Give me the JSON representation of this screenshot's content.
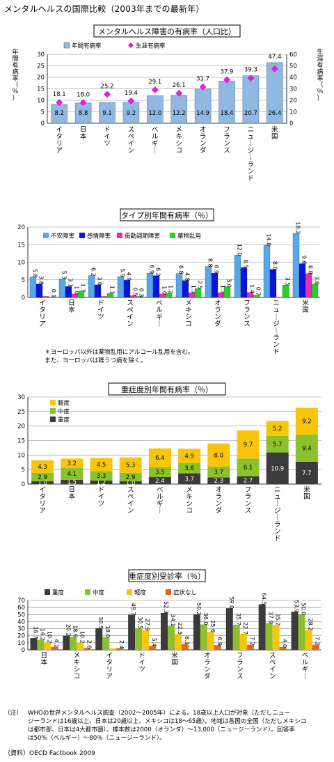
{
  "page_title": "メンタルヘルスの国際比較（2003年までの最新年）",
  "colors": {
    "annual_bar": "#8fb8e2",
    "lifetime_marker": "#e020e0",
    "anxiety": "#55a7ee",
    "mood": "#0a15d9",
    "impulse": "#ea2cb0",
    "substance": "#22d422",
    "mild": "#f9c50b",
    "moderate": "#8bc12c",
    "severe": "#3b3b3b",
    "treat_none": "#e4661e"
  },
  "chart_data": [
    {
      "type": "bar",
      "title": "メンタルヘルス障害の有病率（人口比）",
      "categories": [
        "イタリア",
        "日本",
        "ドイツ",
        "スペイン",
        "ベルギー",
        "メキシコ",
        "オランダ",
        "フランス",
        "ニュージーランド",
        "米国"
      ],
      "series": [
        {
          "name": "年間有病率",
          "axis": "left",
          "values": [
            8.2,
            8.8,
            9.1,
            9.2,
            12.0,
            12.2,
            14.9,
            18.4,
            20.7,
            26.4
          ]
        },
        {
          "name": "生涯有病率",
          "axis": "right",
          "chart": "scatter",
          "values": [
            18.1,
            18.0,
            25.2,
            19.4,
            29.1,
            26.1,
            31.7,
            37.9,
            39.3,
            47.4
          ]
        }
      ],
      "data_labels_top": [
        "18.1",
        "18.0",
        "25.2",
        "19.4",
        "29.1",
        "26.1",
        "31.7",
        "37.9",
        "39.3",
        "47.4"
      ],
      "data_labels_bar": [
        "8.2",
        "8.8",
        "9.1",
        "9.2",
        "12.0",
        "12.2",
        "14.9",
        "18.4",
        "20.7",
        "26.4"
      ],
      "ylabel": "年間有病率（％）",
      "ylabel_right": "生涯有病率（％）",
      "ylim": [
        0,
        30
      ],
      "ylim_right": [
        0,
        60
      ],
      "yticks": [
        "0",
        "5",
        "10",
        "15",
        "20",
        "25",
        "30"
      ],
      "yticks_right": [
        "0",
        "10",
        "20",
        "30",
        "40",
        "50",
        "60"
      ],
      "legend": "top"
    },
    {
      "type": "bar",
      "title": "タイプ別年間有病率（％）",
      "categories": [
        "イタリア",
        "日本",
        "ドイツ",
        "スペイン",
        "ベルギー",
        "メキシコ",
        "オランダ",
        "フランス",
        "ニュージーランド",
        "米国"
      ],
      "series": [
        {
          "name": "不安障害",
          "values": [
            5.8,
            5.3,
            6.2,
            5.9,
            6.9,
            6.8,
            8.8,
            12.0,
            14.8,
            18.2
          ]
        },
        {
          "name": "感情障害",
          "values": [
            3.8,
            3.1,
            3.6,
            4.9,
            6.2,
            4.8,
            6.9,
            8.5,
            8.0,
            9.6
          ]
        },
        {
          "name": "衝動調節障害",
          "values": [
            0.3,
            1.0,
            0.3,
            0.5,
            1.0,
            1.3,
            1.3,
            1.4,
            0.0,
            6.8
          ]
        },
        {
          "name": "薬物乱用",
          "values": [
            0.1,
            1.7,
            1.1,
            0.3,
            1.2,
            2.5,
            3.0,
            0.7,
            3.5,
            3.8
          ]
        }
      ],
      "data_labels": [
        [
          "5.8",
          "3.8",
          "",
          "0.1"
        ],
        [
          "5.3",
          "3.1",
          "1.0",
          "1.7"
        ],
        [
          "6.2",
          "3.6",
          "",
          "1.1"
        ],
        [
          "5.9",
          "4.9",
          "0.5",
          "0.3"
        ],
        [
          "6.9",
          "6.2",
          "1.0",
          "1.2"
        ],
        [
          "6.8",
          "4.8",
          "1.3",
          "2.5"
        ],
        [
          "8.8",
          "6.9",
          "1.3",
          "3.0"
        ],
        [
          "12.0",
          "8.5",
          "1.4",
          "0.7"
        ],
        [
          "14.8",
          "8.0",
          "",
          "3.5"
        ],
        [
          "18.2",
          "9.6",
          "6.8",
          "3.8"
        ]
      ],
      "ylim": [
        0,
        20
      ],
      "yticks": [
        "0",
        "5",
        "10",
        "15",
        "20"
      ],
      "legend": "top",
      "footnote": [
        "＊ヨーロッパ以外は薬物乱用にアルコール乱用を含む。",
        "また、ヨーロッパは躁うつ病を除く。"
      ]
    },
    {
      "type": "bar",
      "stacked": true,
      "title": "重症度別年間有病率（％）",
      "categories": [
        "イタリア",
        "日本",
        "ドイツ",
        "スペイン",
        "ベルギー",
        "メキシコ",
        "オランダ",
        "フランス",
        "ニュージーランド",
        "米国"
      ],
      "series": [
        {
          "name": "重度",
          "values": [
            1.0,
            1.5,
            1.2,
            1.0,
            2.4,
            3.7,
            2.3,
            2.7,
            10.9,
            7.7
          ]
        },
        {
          "name": "中度",
          "values": [
            2.9,
            4.1,
            3.3,
            2.9,
            3.5,
            3.6,
            3.7,
            6.1,
            5.7,
            9.4
          ]
        },
        {
          "name": "軽度",
          "values": [
            4.3,
            3.2,
            4.5,
            5.3,
            6.4,
            4.9,
            8.0,
            9.7,
            5.2,
            9.2
          ]
        }
      ],
      "ylim": [
        0,
        30
      ],
      "yticks": [
        "0",
        "5",
        "10",
        "15",
        "20",
        "25",
        "30"
      ],
      "legend": "top-left"
    },
    {
      "type": "bar",
      "title": "重症度別受診率（％）",
      "categories": [
        "日本",
        "メキシコ",
        "イタリア",
        "ドイツ",
        "米国",
        "オランダ",
        "フランス",
        "スペイン",
        "ベルギー"
      ],
      "series": [
        {
          "name": "重度",
          "values": [
            16.7,
            20.2,
            30.5,
            49.7,
            52.3,
            50.2,
            59.0,
            64.5,
            53.9
          ]
        },
        {
          "name": "中度",
          "values": [
            14.2,
            18.6,
            18.0,
            30.5,
            34.1,
            36.0,
            35.7,
            37.9,
            50.0
          ]
        },
        {
          "name": "軽度",
          "values": [
            10.2,
            10.2,
            2.4,
            27.9,
            22.5,
            25.6,
            22.7,
            35.2,
            28.2
          ]
        },
        {
          "name": "症状なし",
          "values": [
            4.1,
            2.6,
            2.4,
            5.4,
            8.1,
            6.9,
            7.2,
            4.0,
            7.2
          ]
        }
      ],
      "data_labels": [
        [
          "16.7",
          "14.2",
          "10.2",
          "4.1"
        ],
        [
          "20.2",
          "18.6",
          "10.2",
          "2.6"
        ],
        [
          "30.5",
          "18.0",
          "",
          "2.4"
        ],
        [
          "49.7",
          "30.5",
          "27.9",
          "5.4"
        ],
        [
          "52.3",
          "34.1",
          "22.5",
          "8.1"
        ],
        [
          "50.2",
          "36.0",
          "25.6",
          "6.9"
        ],
        [
          "59.0",
          "35.7",
          "22.7",
          "7.2"
        ],
        [
          "64.5",
          "37.9",
          "35.2",
          "4.0"
        ],
        [
          "53.9",
          "50.0",
          "28.2",
          "7.2"
        ]
      ],
      "ylim": [
        0,
        70
      ],
      "yticks": [
        "0",
        "10",
        "20",
        "30",
        "40",
        "50",
        "60",
        "70"
      ],
      "legend": "top"
    }
  ],
  "notes": {
    "label": "（注）",
    "lines": [
      "WHOの世界メンタルヘルス調査（2002～2005年）による。18歳以上人口が対象（ただしニュー",
      "ジーランドは16歳以上、日本は20歳以上、メキシコは18～65歳）。地域は各国の全国（ただしメキシコ",
      "は都市部、日本は4大都市圏）。標本数は2000（オランダ）～13,000（ニュージーランド）。回答率",
      "は50％（ベルギー）～80％（ニュージーランド）。"
    ],
    "source": "（資料）OECD Factbook 2009"
  }
}
